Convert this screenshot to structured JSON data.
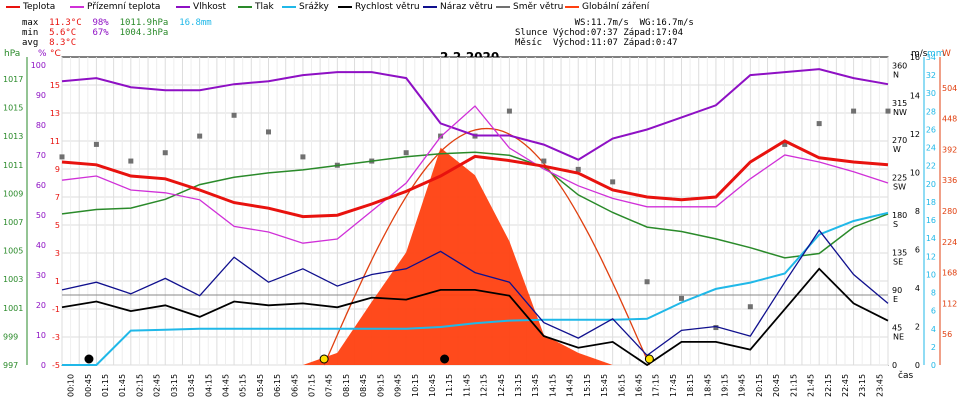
{
  "chart_data": {
    "type": "line",
    "title": "2.2.2020",
    "xlabel": "čas",
    "legend": [
      {
        "name": "Teplota",
        "color": "#e8120e"
      },
      {
        "name": "Přízemní teplota",
        "color": "#d030d8"
      },
      {
        "name": "Vlhkost",
        "color": "#8e10c4"
      },
      {
        "name": "Tlak",
        "color": "#2a8a2a"
      },
      {
        "name": "Srážky",
        "color": "#20b8e8"
      },
      {
        "name": "Rychlost větru",
        "color": "#000000"
      },
      {
        "name": "Náraz větru",
        "color": "#10108e"
      },
      {
        "name": "Směr větru",
        "color": "#707070"
      },
      {
        "name": "Globální záření",
        "color": "#ff4010"
      }
    ],
    "stats": {
      "max": {
        "label": "max",
        "temp": "11.3°C",
        "hum": "98%",
        "press": "1011.9hPa",
        "rain": "16.8mm"
      },
      "min": {
        "label": "min",
        "temp": "5.6°C",
        "hum": "67%",
        "press": "1004.3hPa"
      },
      "avg": {
        "label": "avg",
        "temp": "8.3°C"
      }
    },
    "info": {
      "ws": "WS:11.7m/s",
      "wg": "WG:16.7m/s",
      "sun_label": "Slunce",
      "sunrise": "Východ:07:37",
      "sunset": "Západ:17:04",
      "moon_label": "Měsíc",
      "moonrise": "Východ:11:07",
      "moonset": "Západ:0:47"
    },
    "axes": {
      "hpa_label": "hPa",
      "pct_label": "%",
      "c_label": "°C",
      "ms_label": "m/s",
      "mm_label": "mm",
      "w_label": "W",
      "hpa_ticks": [
        "1017",
        "1015",
        "1013",
        "1011",
        "1009",
        "1007",
        "1005",
        "1003",
        "1001",
        "999",
        "997"
      ],
      "pct_ticks": [
        "100",
        "90",
        "80",
        "70",
        "60",
        "50",
        "40",
        "30",
        "20",
        "10",
        "0"
      ],
      "c_ticks": [
        "15",
        "13",
        "11",
        "9",
        "7",
        "5",
        "3",
        "1",
        "-1",
        "-3",
        "-5"
      ],
      "dir_ticks": [
        "360",
        "315",
        "270",
        "225",
        "180",
        "135",
        "90",
        "45",
        "0"
      ],
      "dir_names": [
        "N",
        "NW",
        "W",
        "SW",
        "S",
        "SE",
        "E",
        "NE"
      ],
      "ms_ticks": [
        "16",
        "14",
        "12",
        "10",
        "8",
        "6",
        "4",
        "2",
        "0"
      ],
      "mm_ticks": [
        "34",
        "32",
        "30",
        "28",
        "26",
        "24",
        "22",
        "20",
        "18",
        "16",
        "14",
        "12",
        "10",
        "8",
        "6",
        "4",
        "2",
        "0"
      ],
      "w_ticks": [
        "504",
        "448",
        "392",
        "336",
        "280",
        "224",
        "168",
        "112",
        "56"
      ],
      "time_ticks": [
        "00:10",
        "00:45",
        "01:15",
        "01:45",
        "02:15",
        "02:45",
        "03:15",
        "03:45",
        "04:15",
        "04:45",
        "05:15",
        "05:45",
        "06:15",
        "06:45",
        "07:15",
        "07:45",
        "08:15",
        "08:45",
        "09:15",
        "09:45",
        "10:15",
        "10:45",
        "11:15",
        "11:45",
        "12:15",
        "12:45",
        "13:15",
        "13:45",
        "14:15",
        "14:45",
        "15:15",
        "15:45",
        "16:15",
        "16:45",
        "17:15",
        "17:45",
        "18:15",
        "18:45",
        "19:15",
        "19:45",
        "20:15",
        "20:45",
        "21:15",
        "21:45",
        "22:15",
        "22:45",
        "23:15",
        "23:45"
      ]
    },
    "x_hours": [
      0,
      1,
      2,
      3,
      4,
      5,
      6,
      7,
      8,
      9,
      10,
      11,
      12,
      13,
      14,
      15,
      16,
      17,
      18,
      19,
      20,
      21,
      22,
      23,
      24
    ],
    "series": [
      {
        "name": "Teplota",
        "unit": "°C",
        "values": [
          9.5,
          9.3,
          8.5,
          8.3,
          7.5,
          6.6,
          6.2,
          5.6,
          5.7,
          6.5,
          7.4,
          8.5,
          9.9,
          9.6,
          9.2,
          8.7,
          7.5,
          7.0,
          6.8,
          7.0,
          9.5,
          11.0,
          9.8,
          9.5,
          9.3
        ]
      },
      {
        "name": "Přízemní teplota",
        "unit": "°C",
        "values": [
          8.2,
          8.5,
          7.5,
          7.3,
          6.8,
          4.9,
          4.5,
          3.7,
          4.0,
          6.0,
          8.0,
          11.3,
          13.5,
          10.5,
          9.0,
          7.8,
          6.9,
          6.3,
          6.3,
          6.3,
          8.3,
          10.0,
          9.5,
          8.8,
          8.0
        ]
      },
      {
        "name": "Vlhkost",
        "unit": "%",
        "values": [
          94,
          95,
          92,
          91,
          91,
          93,
          94,
          96,
          97,
          97,
          95,
          80,
          76,
          76,
          73,
          68,
          75,
          78,
          82,
          86,
          96,
          97,
          98,
          95,
          93
        ]
      },
      {
        "name": "Tlak",
        "unit": "hPa",
        "values": [
          1007.3,
          1007.6,
          1007.7,
          1008.3,
          1009.3,
          1009.8,
          1010.1,
          1010.3,
          1010.6,
          1010.9,
          1011.2,
          1011.4,
          1011.5,
          1011.3,
          1010.5,
          1008.6,
          1007.4,
          1006.4,
          1006.1,
          1005.6,
          1005.0,
          1004.3,
          1004.6,
          1006.4,
          1007.3
        ]
      },
      {
        "name": "Srážky",
        "unit": "mm",
        "values": [
          0,
          0,
          3.8,
          3.9,
          4.0,
          4.0,
          4.0,
          4.0,
          4.0,
          4.0,
          4.0,
          4.2,
          4.6,
          4.9,
          5.0,
          5.0,
          5.0,
          5.1,
          6.9,
          8.4,
          9.1,
          10.1,
          14.4,
          15.9,
          16.8
        ]
      },
      {
        "name": "Rychlost větru",
        "unit": "m/s",
        "values": [
          3.0,
          3.3,
          2.8,
          3.1,
          2.5,
          3.3,
          3.1,
          3.2,
          3.0,
          3.5,
          3.4,
          3.9,
          3.9,
          3.6,
          1.5,
          0.9,
          1.2,
          0,
          1.2,
          1.2,
          0.8,
          2.9,
          5.0,
          3.2,
          2.3
        ]
      },
      {
        "name": "Náraz větru",
        "unit": "m/s",
        "values": [
          3.9,
          4.3,
          3.7,
          4.5,
          3.6,
          5.6,
          4.3,
          5.0,
          4.1,
          4.7,
          5.0,
          5.9,
          4.8,
          4.3,
          2.2,
          1.4,
          2.4,
          0.5,
          1.8,
          2.0,
          1.5,
          4.3,
          7.0,
          4.7,
          3.2
        ]
      },
      {
        "name": "Směr větru",
        "unit": "°",
        "values": [
          250,
          265,
          245,
          255,
          275,
          300,
          280,
          250,
          240,
          245,
          255,
          275,
          275,
          305,
          245,
          235,
          220,
          100,
          80,
          45,
          70,
          265,
          290,
          305,
          305
        ]
      },
      {
        "name": "Globální záření",
        "unit": "W",
        "values": [
          0,
          0,
          0,
          0,
          0,
          0,
          0,
          0,
          22,
          115,
          205,
          395,
          345,
          225,
          55,
          22,
          0,
          0,
          0,
          0,
          0,
          0,
          0,
          0,
          0
        ]
      }
    ],
    "ylim": {
      "temp": [
        -5,
        17
      ],
      "hum": [
        0,
        102
      ],
      "press": [
        997,
        1018
      ],
      "ms": [
        0,
        16
      ],
      "dir": [
        0,
        370
      ],
      "rad": [
        0,
        560
      ],
      "mm": [
        0,
        34
      ]
    }
  }
}
